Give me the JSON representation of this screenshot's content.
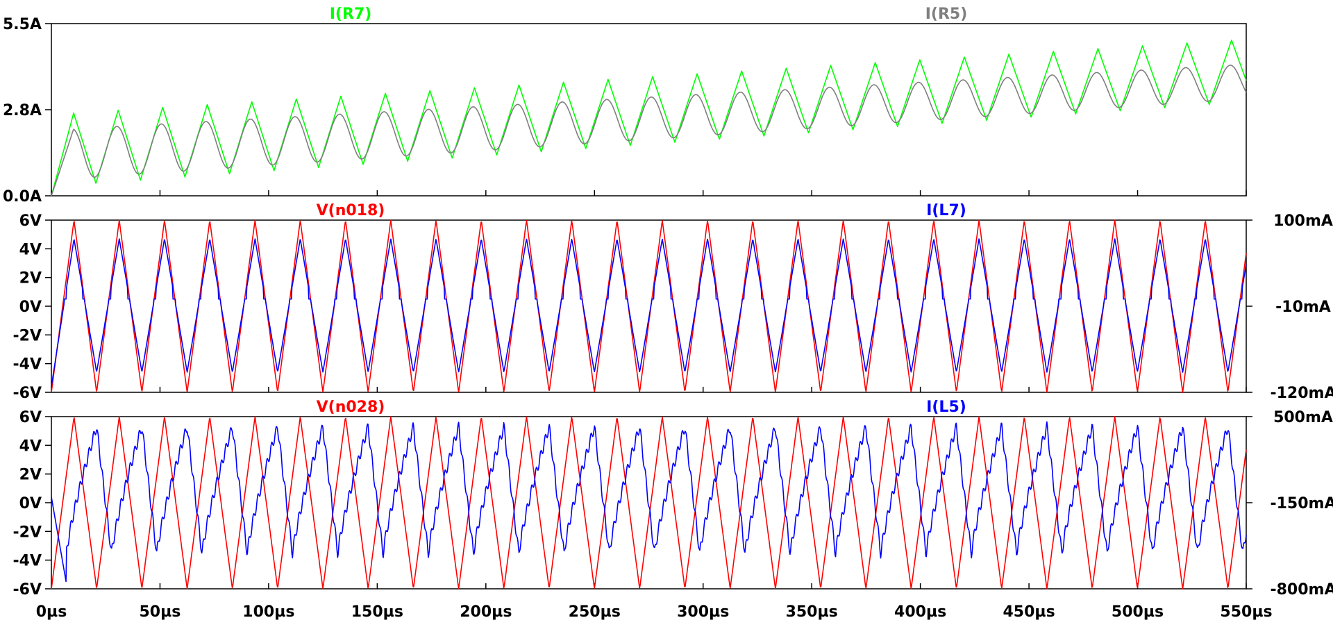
{
  "chart_data": [
    {
      "type": "line",
      "pane": "top",
      "ylim": [
        0.0,
        5.5
      ],
      "y_ticks": [
        "5.5A",
        "2.8A",
        "0.0A"
      ],
      "xlim": [
        0,
        550
      ],
      "x_unit": "µs",
      "series": [
        {
          "name": "I(R7)",
          "color": "#00ff00",
          "wave": "triangle",
          "period_us": 20.5,
          "start": 0.0,
          "low": [
            0.3,
            3.0
          ],
          "high": [
            2.6,
            5.0
          ]
        },
        {
          "name": "I(R5)",
          "color": "#7f7f7f",
          "wave": "smooth",
          "period_us": 20.5,
          "start": 0.0,
          "low": [
            0.5,
            3.1
          ],
          "high": [
            2.1,
            4.2
          ]
        }
      ]
    },
    {
      "type": "line",
      "pane": "middle",
      "ylim": [
        -6,
        6
      ],
      "y_ticks": [
        "6V",
        "4V",
        "2V",
        "0V",
        "-2V",
        "-4V",
        "-6V"
      ],
      "y2lim": [
        -120,
        100
      ],
      "y2_ticks": [
        "100mA",
        "-10mA",
        "-120mA"
      ],
      "xlim": [
        0,
        550
      ],
      "series": [
        {
          "name": "V(n018)",
          "color": "#ff0000",
          "axis": "left",
          "wave": "triangle",
          "period_us": 20.83,
          "start": -6,
          "low": [
            -6,
            -6
          ],
          "high": [
            6,
            6
          ]
        },
        {
          "name": "I(L7)",
          "color": "#0000ff",
          "axis": "left",
          "wave": "clipped-triangle",
          "period_us": 20.83,
          "start": -5.6,
          "low": [
            -4.6,
            -4.6
          ],
          "high": [
            4.7,
            4.7
          ],
          "flat_band": [
            0.3,
            0.7
          ]
        }
      ]
    },
    {
      "type": "line",
      "pane": "bottom",
      "ylim": [
        -6,
        6
      ],
      "y_ticks": [
        "6V",
        "4V",
        "2V",
        "0V",
        "-2V",
        "-4V",
        "-6V"
      ],
      "y2lim": [
        -800,
        500
      ],
      "y2_ticks": [
        "500mA",
        "-150mA",
        "-800mA"
      ],
      "xlim": [
        0,
        550
      ],
      "series": [
        {
          "name": "V(n028)",
          "color": "#ff0000",
          "axis": "left",
          "wave": "triangle",
          "period_us": 20.83,
          "start": -6,
          "low": [
            -6,
            -6
          ],
          "high": [
            6,
            6
          ]
        },
        {
          "name": "I(L5)",
          "color": "#0000ff",
          "axis": "left",
          "wave": "sawtooth-ripple",
          "period_us": 20.83,
          "start": 0.4,
          "low": [
            -3.6,
            -3.6
          ],
          "high": [
            5.3,
            5.3
          ]
        }
      ]
    }
  ],
  "x_ticks": [
    "0µs",
    "50µs",
    "100µs",
    "150µs",
    "200µs",
    "250µs",
    "300µs",
    "350µs",
    "400µs",
    "450µs",
    "500µs",
    "550µs"
  ],
  "x_values": [
    0,
    50,
    100,
    150,
    200,
    250,
    300,
    350,
    400,
    450,
    500,
    550
  ]
}
